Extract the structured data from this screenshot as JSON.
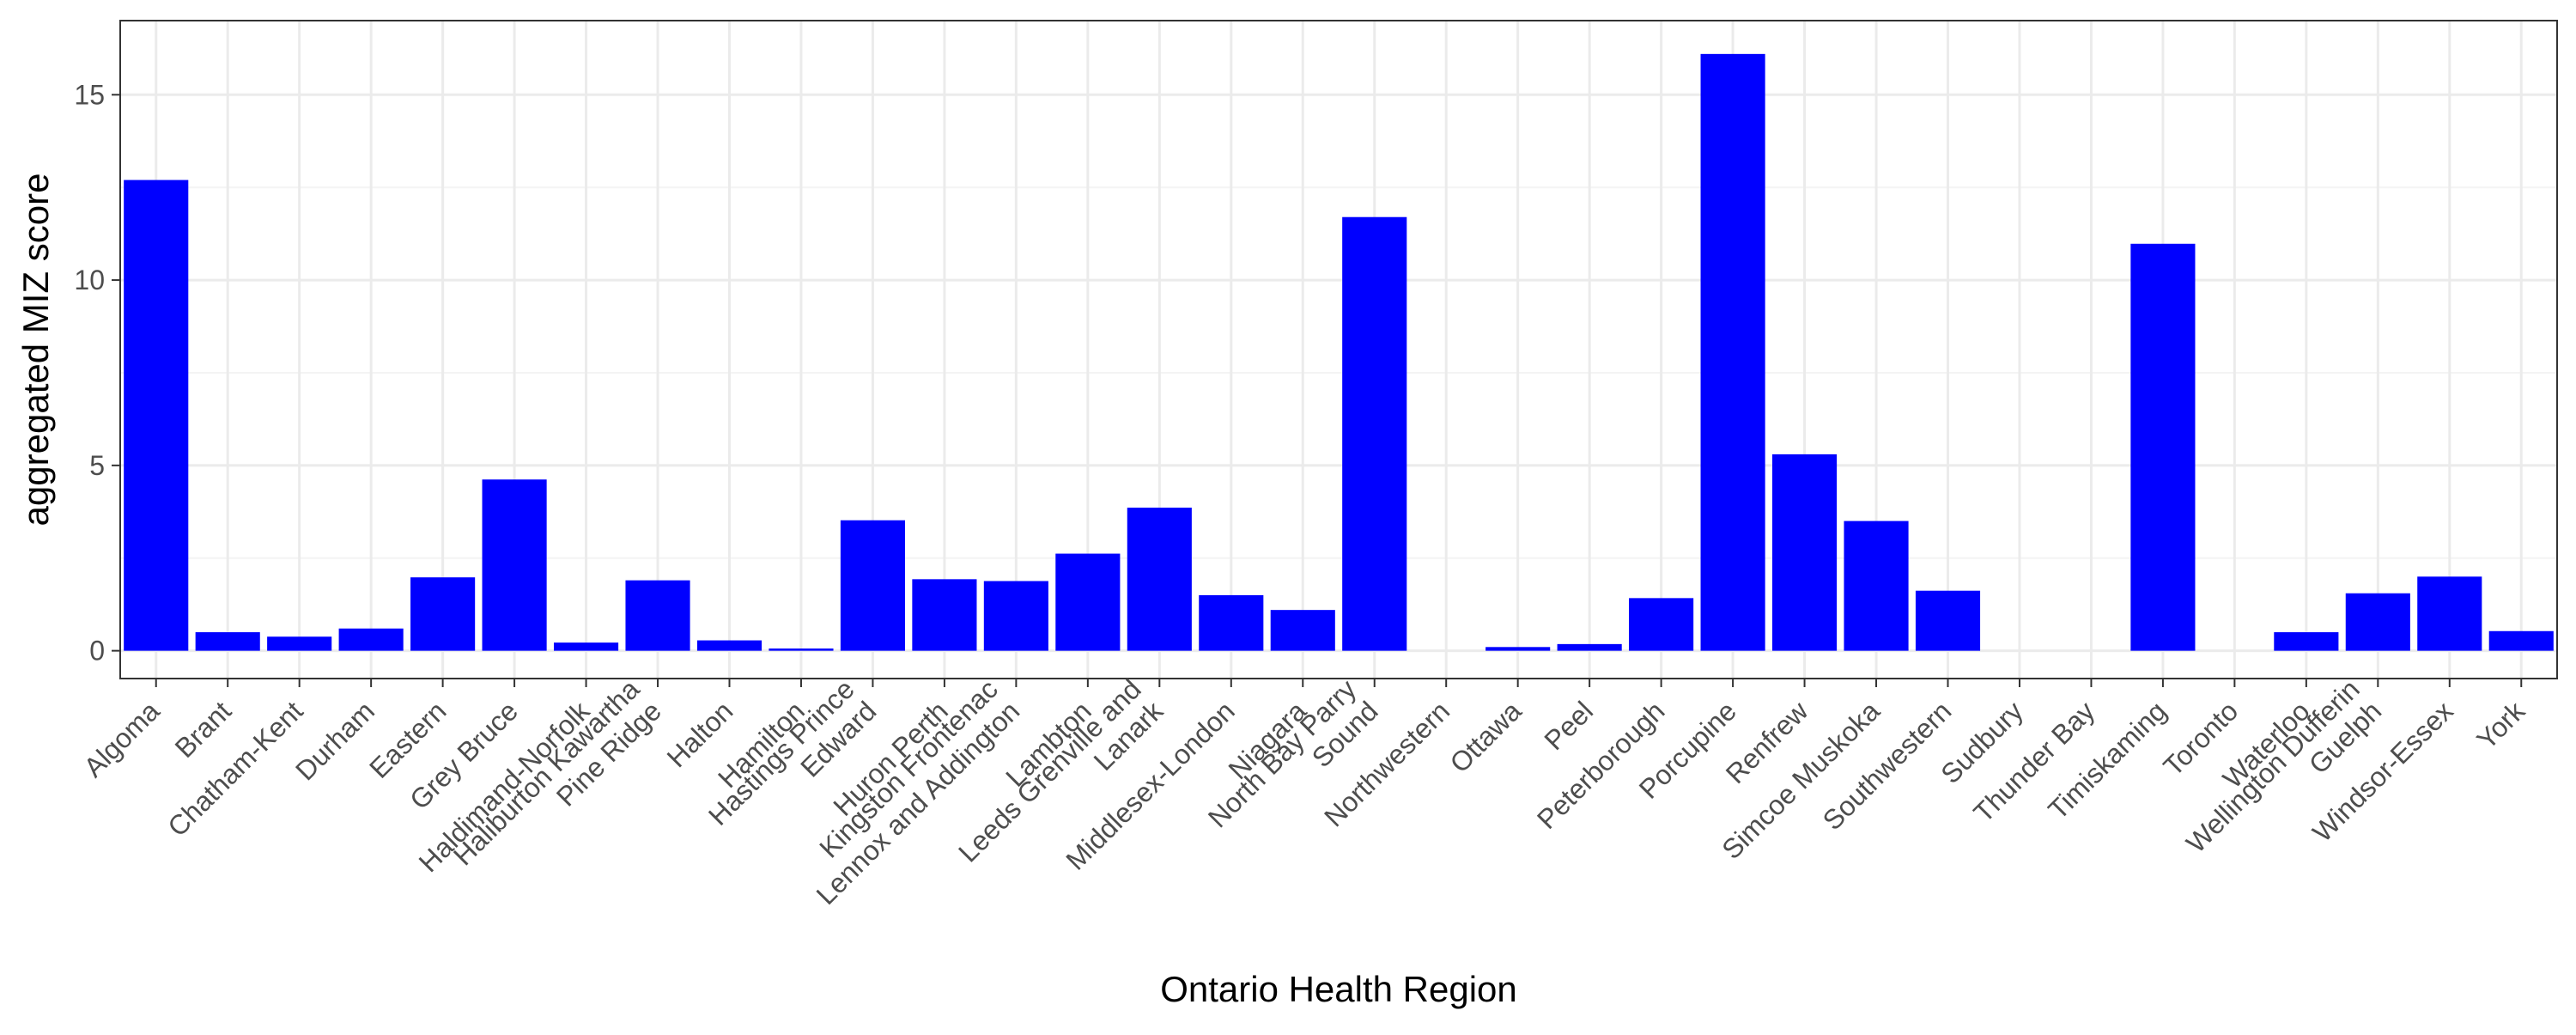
{
  "chart_data": {
    "type": "bar",
    "title": "",
    "xlabel": "Ontario Health Region",
    "ylabel": "aggregated MIZ score",
    "ylim": [
      -0.75,
      17.0
    ],
    "yticks": [
      0,
      5,
      10,
      15
    ],
    "grid": true,
    "legend": "none",
    "categories": [
      "Algoma",
      "Brant",
      "Chatham-Kent",
      "Durham",
      "Eastern",
      "Grey Bruce",
      "Haldimand-Norfolk",
      "Haliburton Kawartha\nPine Ridge",
      "Halton",
      "Hamilton",
      "Hastings Prince\nEdward",
      "Huron Perth",
      "Kingston Frontenac\nLennox and Addington",
      "Lambton",
      "Leeds Grenville and\nLanark",
      "Middlesex-London",
      "Niagara",
      "North Bay Parry\nSound",
      "Northwestern",
      "Ottawa",
      "Peel",
      "Peterborough",
      "Porcupine",
      "Renfrew",
      "Simcoe Muskoka",
      "Southwestern",
      "Sudbury",
      "Thunder Bay",
      "Timiskaming",
      "Toronto",
      "Waterloo",
      "Wellington Dufferin\nGuelph",
      "Windsor-Essex",
      "York"
    ],
    "values": [
      12.7,
      0.5,
      0.38,
      0.6,
      1.98,
      4.62,
      0.22,
      1.9,
      0.28,
      0.06,
      3.52,
      1.93,
      1.88,
      2.62,
      3.86,
      1.5,
      1.1,
      11.7,
      0,
      0.1,
      0.18,
      1.42,
      16.1,
      5.3,
      3.5,
      1.62,
      0,
      0,
      10.98,
      0,
      0.5,
      1.55,
      2.0,
      0.53
    ],
    "colors": {
      "bar": "#0000ff",
      "grid_major": "#ebebeb",
      "grid_minor": "#f4f4f4",
      "panel_border": "#333333",
      "tick_text": "#4d4d4d"
    }
  }
}
